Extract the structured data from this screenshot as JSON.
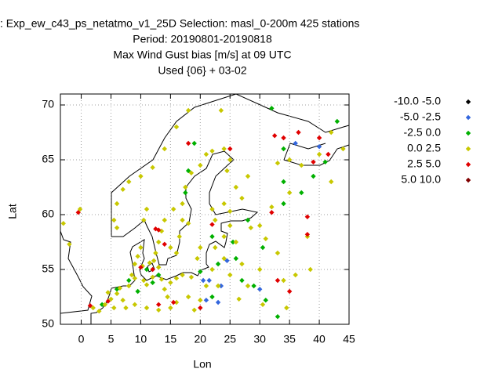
{
  "chart_data": {
    "type": "scatter",
    "title_lines": [
      ": Exp_ew_c43_ps_netatmo_v1_25D   Selection: masl_0-200m    425 stations",
      "Period: 20190801-20190818",
      "Max Wind Gust bias [m/s] at  09 UTC",
      "Used {06} + 03-02"
    ],
    "x_label": "Lon",
    "y_label": "Lat",
    "xlim": [
      -3.5,
      45
    ],
    "xticks": [
      0,
      5,
      10,
      15,
      20,
      25,
      30,
      35,
      40,
      45
    ],
    "ylim": [
      50,
      71
    ],
    "yticks": [
      50,
      55,
      60,
      65,
      70
    ],
    "grid": true,
    "series": [
      {
        "name": "-10.0 -5.0",
        "color": "#000000",
        "x": [],
        "y": []
      },
      {
        "name": "-5.0 -2.5",
        "color": "#3366dd",
        "x": [
          20.5,
          21.5,
          21,
          23,
          23.5,
          30,
          36,
          40,
          24.5
        ],
        "y": [
          54,
          54,
          52.2,
          52,
          53.5,
          53.2,
          66.5,
          66.2,
          55.8
        ]
      },
      {
        "name": "-2.5 0.0",
        "color": "#00b000",
        "x": [
          3.5,
          6,
          8,
          9.5,
          12,
          11,
          13,
          18,
          19,
          17.5,
          22,
          20,
          23,
          26,
          25.5,
          27,
          29,
          31,
          33,
          28,
          34,
          34,
          37,
          39,
          41,
          32,
          43,
          34,
          30.5,
          22
        ],
        "y": [
          51.8,
          53.2,
          54,
          53,
          53.8,
          55,
          54.5,
          64,
          66.5,
          62,
          58,
          54.8,
          55.5,
          56,
          57.5,
          54,
          53.5,
          52.2,
          50.7,
          59.5,
          61,
          63,
          62,
          63.5,
          64.8,
          69.7,
          68.5,
          66,
          57,
          52.5
        ]
      },
      {
        "name": "0.0 2.5",
        "color": "#c8c800",
        "x": [
          -0.2,
          -3,
          -2,
          2,
          3,
          4,
          5,
          6,
          6.5,
          7,
          4.5,
          5.5,
          8,
          8.5,
          9,
          9.5,
          10,
          10.3,
          9,
          10.5,
          11,
          11.5,
          12.2,
          12.5,
          13,
          12,
          13.5,
          14,
          15,
          16,
          17,
          18.5,
          14.5,
          16,
          18,
          20,
          19,
          7.5,
          9,
          11,
          13,
          15,
          13,
          13.5,
          14,
          15,
          16,
          16.5,
          17,
          18,
          15.5,
          17,
          17.5,
          18.5,
          20,
          21,
          22,
          6,
          5.5,
          6,
          7,
          8,
          10.5,
          11,
          10,
          12,
          14,
          16,
          18,
          23.5,
          24,
          24.5,
          25,
          26,
          24,
          22,
          25,
          27,
          28,
          25,
          24,
          22.5,
          26,
          24,
          27,
          22,
          25,
          30,
          31,
          33,
          30,
          34,
          36,
          38,
          33,
          35,
          37,
          40,
          42,
          44,
          35,
          32,
          38.5,
          42,
          26.5,
          28,
          30.5,
          34.5,
          21,
          23,
          19.5,
          20,
          22.5,
          28.5
        ],
        "y": [
          60.5,
          59.2,
          57.3,
          51.5,
          51.2,
          51.8,
          52.3,
          52.8,
          53.3,
          52.2,
          52.9,
          51.5,
          53.5,
          54.5,
          55.5,
          56.2,
          57,
          55.3,
          54.2,
          54,
          53.6,
          55.6,
          55.8,
          56.5,
          55.2,
          54.3,
          54.1,
          53.2,
          53.8,
          54.2,
          54.5,
          54.3,
          52.5,
          52,
          52.5,
          52.2,
          51.3,
          51.5,
          51.8,
          51.5,
          51.3,
          51.5,
          57.5,
          58.5,
          59.5,
          57,
          56.5,
          58,
          59.5,
          59.2,
          60.5,
          61,
          62.5,
          63.8,
          64.5,
          65.5,
          65.8,
          58.8,
          59.5,
          61,
          62.3,
          63,
          59.5,
          60.5,
          63.5,
          64.3,
          66,
          68,
          69.5,
          69.5,
          66,
          64,
          65,
          62.5,
          61,
          60.5,
          60.3,
          61.5,
          63.5,
          59,
          58,
          57,
          57.5,
          56,
          55.5,
          55,
          54.5,
          59,
          57.8,
          56.5,
          55,
          54,
          54.5,
          58,
          64.7,
          65,
          64.5,
          65.5,
          67.5,
          66,
          62,
          60.7,
          55,
          63,
          52.3,
          53.5,
          51.8,
          51.5,
          53.5,
          53.5,
          56,
          57,
          59.5,
          58.8
        ]
      },
      {
        "name": "2.5 5.0",
        "color": "#e00000",
        "x": [
          -0.5,
          1.5,
          4.5,
          10,
          12,
          13,
          12.5,
          14,
          18,
          22,
          20,
          13,
          15.5,
          32.5,
          34,
          36.5,
          39,
          40,
          41.5,
          32,
          33,
          35,
          38,
          25,
          38
        ],
        "y": [
          60.2,
          51.7,
          52.1,
          55.2,
          55,
          58.6,
          58.7,
          57.3,
          66.5,
          59.1,
          51.5,
          51.8,
          52,
          67.2,
          67,
          67.5,
          64.8,
          67,
          65.5,
          60.2,
          54,
          53,
          58.2,
          66,
          59.8
        ]
      },
      {
        "name": "5.0 10.0",
        "color": "#800000",
        "x": [],
        "y": []
      }
    ]
  }
}
